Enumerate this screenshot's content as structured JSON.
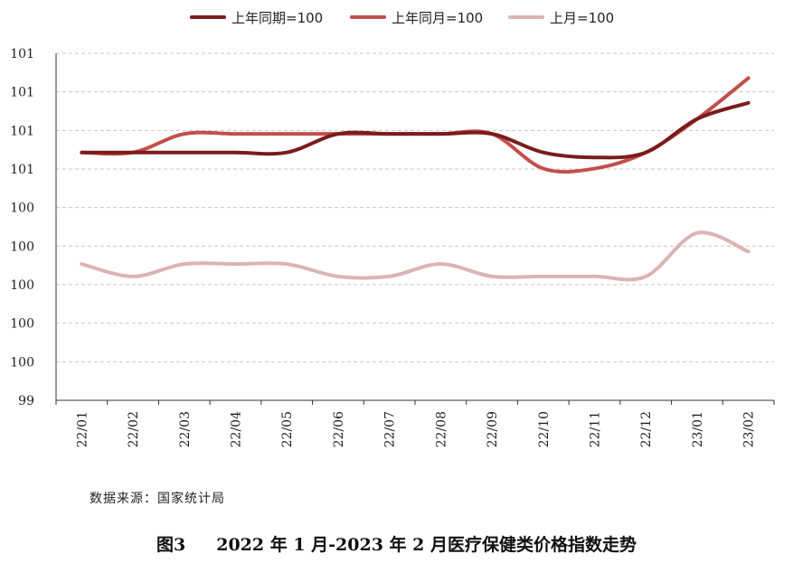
{
  "chart_data": {
    "type": "line",
    "categories": [
      "22/01",
      "22/02",
      "22/03",
      "22/04",
      "22/05",
      "22/06",
      "22/07",
      "22/08",
      "22/09",
      "22/10",
      "22/11",
      "22/12",
      "23/01",
      "23/02"
    ],
    "y_tick_labels": [
      "99",
      "100",
      "100",
      "100",
      "100",
      "100",
      "101",
      "101",
      "101",
      "101"
    ],
    "ylim": [
      99.0,
      101.8
    ],
    "grid": true,
    "legend_position": "top",
    "series": [
      {
        "name": "上年同期=100",
        "color": "#7a1c1c",
        "values": [
          101.0,
          101.0,
          101.0,
          101.0,
          101.0,
          101.15,
          101.15,
          101.15,
          101.15,
          101.0,
          100.96,
          101.0,
          101.27,
          101.4
        ]
      },
      {
        "name": "上年同月=100",
        "color": "#c0504d",
        "values": [
          101.0,
          101.0,
          101.15,
          101.15,
          101.15,
          101.15,
          101.15,
          101.15,
          101.15,
          100.87,
          100.87,
          101.0,
          101.27,
          101.6
        ]
      },
      {
        "name": "上月=100",
        "color": "#dbb3b3",
        "values": [
          100.1,
          100.0,
          100.1,
          100.1,
          100.1,
          100.0,
          100.0,
          100.1,
          100.0,
          100.0,
          100.0,
          100.0,
          100.35,
          100.2
        ]
      }
    ]
  },
  "source": "数据来源：国家统计局",
  "caption": {
    "figure": "图3",
    "text": "2022 年 1 月-2023 年 2 月医疗保健类价格指数走势"
  }
}
